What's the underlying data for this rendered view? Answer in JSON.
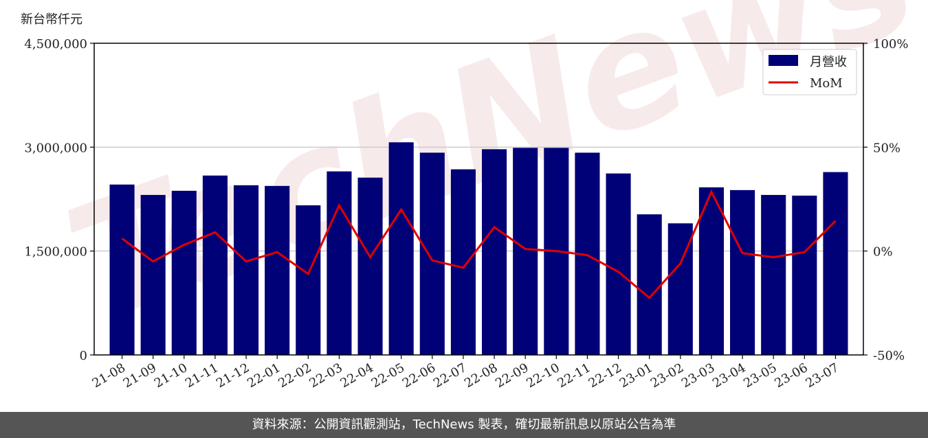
{
  "footer": {
    "text": "資料來源：公開資訊觀測站，TechNews 製表，確切最新訊息以原站公告為準"
  },
  "watermark": {
    "text": "TechNews"
  },
  "colors": {
    "bars": "#000077",
    "mom_line": "#e00000",
    "grid": "#cccccc"
  },
  "chart_data": {
    "type": "bar",
    "title": "",
    "y_unit_label": "新台幣仟元",
    "xlabel": "",
    "ylabel": "",
    "ylim": [
      0,
      4500000
    ],
    "y_ticks": [
      "0",
      "1,500,000",
      "3,000,000",
      "4,500,000"
    ],
    "y_tick_values": [
      0,
      1500000,
      3000000,
      4500000
    ],
    "y2lim": [
      -50,
      100
    ],
    "y2_ticks": [
      "-50%",
      "0%",
      "50%",
      "100%"
    ],
    "y2_tick_values": [
      -50,
      0,
      50,
      100
    ],
    "grid": "horizontal",
    "legend_position": "top-right",
    "categories": [
      "21-08",
      "21-09",
      "21-10",
      "21-11",
      "21-12",
      "22-01",
      "22-02",
      "22-03",
      "22-04",
      "22-05",
      "22-06",
      "22-07",
      "22-08",
      "22-09",
      "22-10",
      "22-11",
      "22-12",
      "23-01",
      "23-02",
      "23-03",
      "23-04",
      "23-05",
      "23-06",
      "23-07"
    ],
    "series": [
      {
        "name": "月營收",
        "type": "bar",
        "axis": "left",
        "values": [
          2460000,
          2310000,
          2370000,
          2590000,
          2450000,
          2440000,
          2160000,
          2650000,
          2560000,
          3070000,
          2920000,
          2680000,
          2970000,
          2990000,
          2990000,
          2920000,
          2620000,
          2030000,
          1900000,
          2420000,
          2380000,
          2310000,
          2300000,
          2640000
        ]
      },
      {
        "name": "MoM",
        "type": "line",
        "axis": "right",
        "values": [
          6,
          -5,
          3,
          9,
          -5,
          -0.5,
          -11,
          22,
          -3,
          20,
          -4.5,
          -8,
          11.5,
          1,
          0,
          -2,
          -10,
          -22.5,
          -6,
          28.5,
          -1,
          -3,
          -0.5,
          14.5
        ]
      }
    ]
  }
}
